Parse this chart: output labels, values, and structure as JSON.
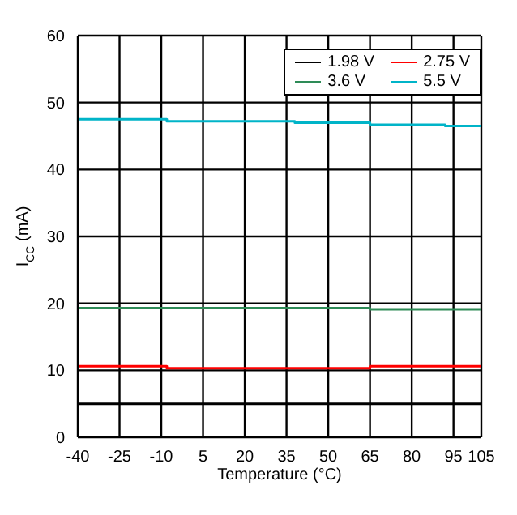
{
  "chart_data": {
    "type": "step",
    "xlabel": "Temperature (°C)",
    "ylabel": "I$_{CC}$ (mA)",
    "xlim": [
      -40,
      105
    ],
    "xticks": [
      -40,
      -25,
      -10,
      5,
      20,
      35,
      50,
      65,
      80,
      95,
      105
    ],
    "ylim": [
      0,
      60
    ],
    "yticks": [
      0,
      10,
      20,
      30,
      40,
      50,
      60
    ],
    "grid": true,
    "legend": "top right",
    "series": [
      {
        "name": "1.98 V",
        "color": "#000000",
        "x": [
          -40,
          105
        ],
        "values": [
          5,
          5
        ]
      },
      {
        "name": "2.75 V",
        "color": "#ff0000",
        "x": [
          -40,
          -8,
          65,
          105
        ],
        "values": [
          10.6,
          10.3,
          10.6,
          10.6
        ]
      },
      {
        "name": "3.6 V",
        "color": "#2e8b57",
        "x": [
          -40,
          65,
          105
        ],
        "values": [
          19.3,
          19.1,
          19.1
        ]
      },
      {
        "name": "5.5 V",
        "color": "#00b4c8",
        "x": [
          -40,
          -8,
          38,
          65,
          92,
          105
        ],
        "values": [
          47.5,
          47.2,
          47.0,
          46.7,
          46.5,
          46.5
        ]
      }
    ]
  }
}
